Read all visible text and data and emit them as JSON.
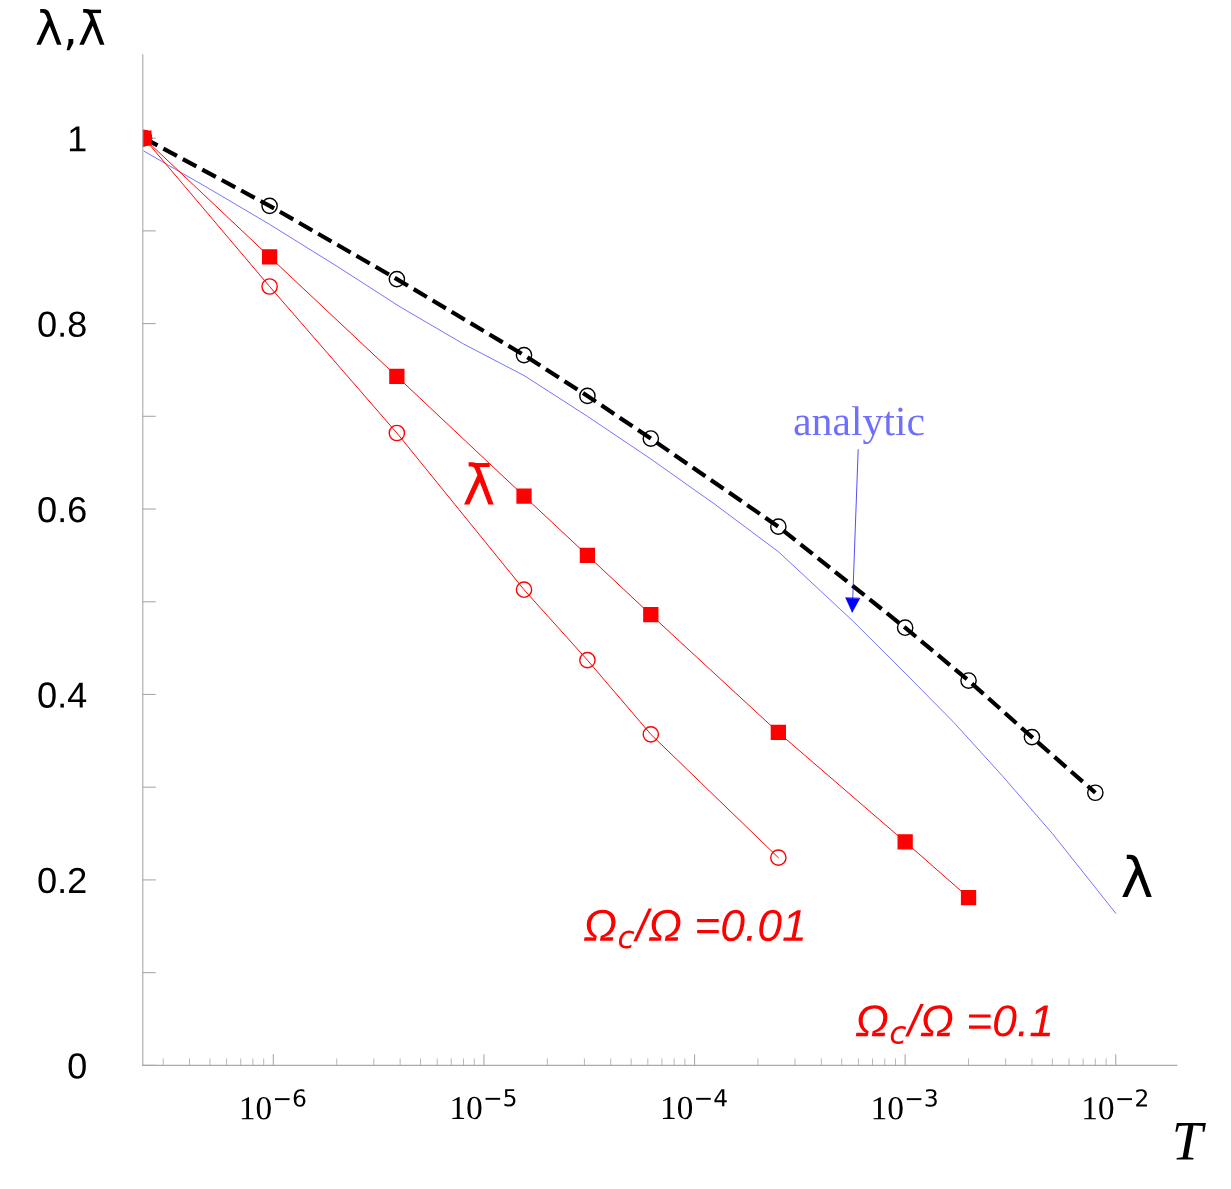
{
  "chart_data": {
    "type": "line",
    "xlabel": "T",
    "ylabel": "λ,λ̄",
    "log": "x",
    "xlim": [
      2.4e-07,
      0.0195
    ],
    "ylim": [
      0,
      1.09
    ],
    "xticks": [
      {
        "value": 1e-06,
        "label": "10$^{−6}$"
      },
      {
        "value": 1e-05,
        "label": "10$^{−5}$"
      },
      {
        "value": 0.0001,
        "label": "10$^{−4}$"
      },
      {
        "value": 0.001,
        "label": "10$^{−3}$"
      },
      {
        "value": 0.01,
        "label": "10$^{−2}$"
      }
    ],
    "yticks": [
      0,
      {
        "value": 0.1,
        "label": null
      },
      0.2,
      {
        "value": 0.3,
        "label": null
      },
      0.4,
      {
        "value": 0.5,
        "label": null
      },
      0.6,
      {
        "value": 0.7,
        "label": null
      },
      0.8,
      {
        "value": 0.9,
        "label": null
      },
      1
    ],
    "grid": false,
    "series": [
      {
        "name": "analytic",
        "color": "#6f6fff",
        "line_style": "solid",
        "marker": "none",
        "x": [
          2.43e-07,
          5e-07,
          9.6e-07,
          2e-06,
          4e-06,
          8e-06,
          1.55e-05,
          3.1e-05,
          6.2e-05,
          0.000125,
          0.00025,
          0.00056,
          0.001,
          0.0017,
          0.0029,
          0.005,
          0.01
        ],
        "values": [
          0.986,
          0.945,
          0.907,
          0.862,
          0.818,
          0.778,
          0.744,
          0.7,
          0.654,
          0.605,
          0.554,
          0.48,
          0.423,
          0.37,
          0.312,
          0.25,
          0.164
        ]
      },
      {
        "name": "λ",
        "color": "#000000",
        "line_style": "dashed",
        "marker": "circle",
        "x": [
          2.43e-07,
          9.6e-07,
          3.86e-06,
          1.55e-05,
          3.1e-05,
          6.2e-05,
          0.00025,
          0.001,
          0.002,
          0.004,
          0.008
        ],
        "values": [
          1.0,
          0.927,
          0.848,
          0.766,
          0.722,
          0.676,
          0.581,
          0.472,
          0.415,
          0.354,
          0.294
        ]
      },
      {
        "name": "Ω$_{c}$/Ω =0.01",
        "color": "#ff0000",
        "line_style": "solid",
        "marker": "circle",
        "x": [
          2.43e-07,
          9.6e-07,
          3.86e-06,
          1.55e-05,
          3.1e-05,
          6.2e-05,
          0.00025
        ],
        "values": [
          1.0,
          0.84,
          0.682,
          0.513,
          0.437,
          0.357,
          0.224
        ]
      },
      {
        "name": "Ω$_{c}$/Ω =0.1",
        "color": "#ff0000",
        "line_style": "solid",
        "marker": "square",
        "x": [
          2.43e-07,
          9.6e-07,
          3.86e-06,
          1.55e-05,
          3.1e-05,
          6.2e-05,
          0.00025,
          0.001,
          0.002
        ],
        "values": [
          1.0,
          0.872,
          0.743,
          0.614,
          0.55,
          0.486,
          0.359,
          0.241,
          0.181
        ]
      }
    ],
    "annotations": [
      "λ̄"
    ]
  }
}
